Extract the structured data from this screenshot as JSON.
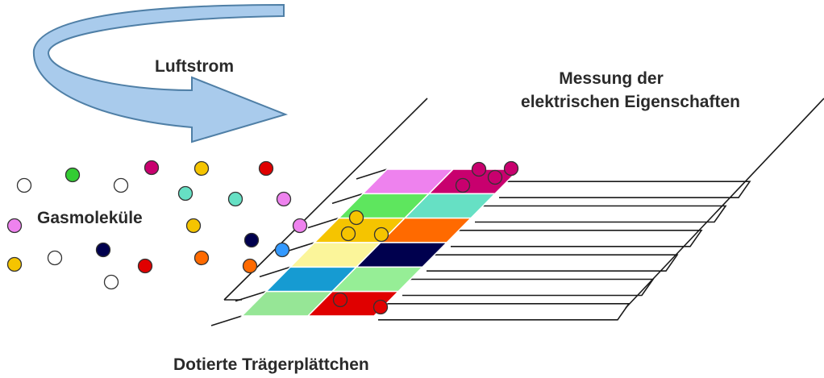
{
  "labels": {
    "airflow": "Luftstrom",
    "measurement_line1": "Messung der",
    "measurement_line2": "elektrischen Eigenschaften",
    "gas_molecules": "Gasmoleküle",
    "doped_plates": "Dotierte Trägerplättchen"
  },
  "colors": {
    "arrow_fill": "#a9cbec",
    "arrow_stroke": "#4f7fa6",
    "line": "#1a1a1a"
  },
  "plate_rows": [
    [
      "#ee82ee",
      "#c8006e"
    ],
    [
      "#5ee65e",
      "#66e0c4"
    ],
    [
      "#f5c400",
      "#ff6a00"
    ],
    [
      "#fbf59a",
      "#00004e"
    ],
    [
      "#169bd2",
      "#96ee96"
    ],
    [
      "#96e696",
      "#e00000"
    ]
  ],
  "molecules": [
    {
      "color": "#ffffff"
    },
    {
      "color": "#33cc33"
    },
    {
      "color": "#ffffff"
    },
    {
      "color": "#c8006e"
    },
    {
      "color": "#f5c400"
    },
    {
      "color": "#e00000"
    },
    {
      "color": "#66e0c4"
    },
    {
      "color": "#66e0c4"
    },
    {
      "color": "#ee82ee"
    },
    {
      "color": "#ee82ee"
    },
    {
      "color": "#f5c400"
    },
    {
      "color": "#00004e"
    },
    {
      "color": "#ee82ee"
    },
    {
      "color": "#f5c400"
    },
    {
      "color": "#ffffff"
    },
    {
      "color": "#00004e"
    },
    {
      "color": "#e00000"
    },
    {
      "color": "#ff6a00"
    },
    {
      "color": "#ff6a00"
    },
    {
      "color": "#3399ff"
    },
    {
      "color": "#ffffff"
    }
  ],
  "adsorbed": [
    {
      "color": "#c8006e"
    },
    {
      "color": "#c8006e"
    },
    {
      "color": "#c8006e"
    },
    {
      "color": "#c8006e"
    },
    {
      "color": "#f5c400"
    },
    {
      "color": "#f5c400"
    },
    {
      "color": "#f5c400"
    },
    {
      "color": "#e00000"
    },
    {
      "color": "#e00000"
    }
  ]
}
